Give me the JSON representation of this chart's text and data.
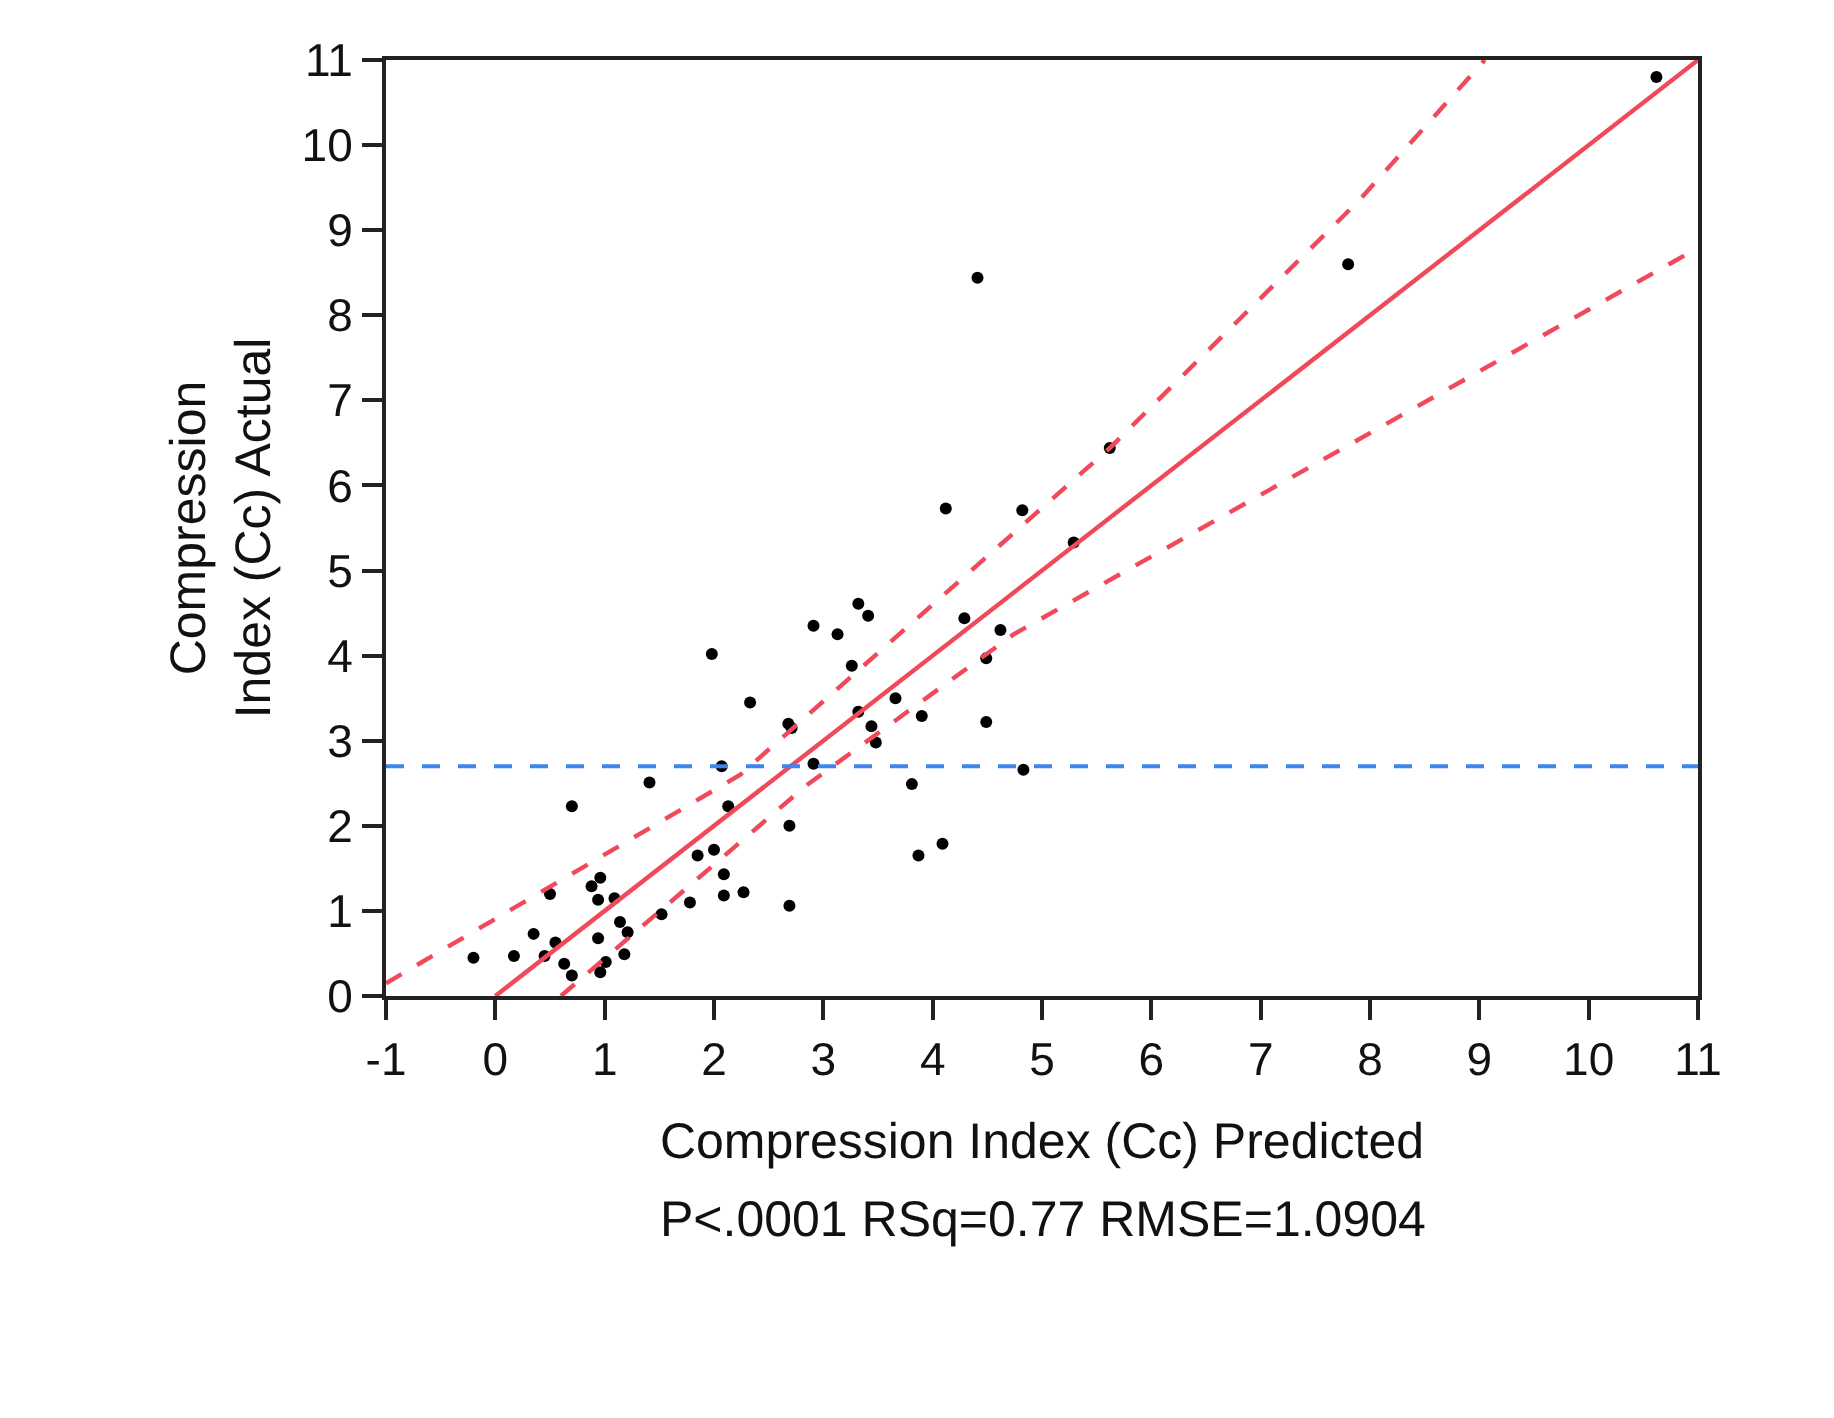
{
  "chart_data": {
    "type": "scatter",
    "xlabel": "Compression Index (Cc) Predicted",
    "ylabel": "Compression\nIndex (Cc) Actual",
    "annotations": [
      "P<.0001 RSq=0.77 RMSE=1.0904"
    ],
    "xlim": [
      -1,
      11
    ],
    "ylim": [
      0,
      11
    ],
    "xticks": [
      -1,
      0,
      1,
      2,
      3,
      4,
      5,
      6,
      7,
      8,
      9,
      10,
      11
    ],
    "yticks": [
      0,
      1,
      2,
      3,
      4,
      5,
      6,
      7,
      8,
      9,
      10,
      11
    ],
    "series": [
      {
        "color": "#000000",
        "marker": "circle",
        "x": [
          -0.2,
          0.17,
          0.35,
          0.45,
          0.5,
          0.55,
          0.63,
          0.7,
          0.7,
          0.88,
          0.96,
          0.94,
          0.94,
          1.09,
          1.14,
          1.21,
          1.01,
          0.96,
          1.18,
          1.41,
          1.52,
          1.78,
          1.85,
          2.0,
          2.09,
          2.09,
          2.13,
          2.27,
          2.07,
          2.69,
          2.69,
          2.91,
          1.98,
          2.33,
          2.68,
          2.71,
          3.32,
          3.44,
          3.48,
          3.66,
          3.9,
          3.81,
          3.87,
          4.09,
          4.83,
          4.49,
          4.49,
          4.62,
          4.29,
          3.26,
          3.13,
          2.91,
          3.32,
          3.41,
          4.12,
          4.82,
          5.29,
          5.62,
          4.41,
          7.8,
          10.62
        ],
        "values": [
          0.45,
          0.47,
          0.73,
          0.47,
          1.2,
          0.63,
          0.38,
          0.24,
          2.23,
          1.29,
          1.39,
          1.13,
          0.68,
          1.15,
          0.87,
          0.75,
          0.4,
          0.28,
          0.49,
          2.51,
          0.96,
          1.1,
          1.65,
          1.72,
          1.43,
          1.18,
          2.23,
          1.22,
          2.7,
          2.0,
          1.06,
          2.73,
          4.02,
          3.45,
          3.2,
          3.15,
          3.34,
          3.17,
          2.98,
          3.5,
          3.29,
          2.49,
          1.65,
          1.79,
          2.66,
          3.22,
          3.97,
          4.3,
          4.44,
          3.88,
          4.25,
          4.35,
          4.61,
          4.47,
          5.73,
          5.71,
          5.33,
          6.44,
          8.44,
          8.6,
          10.8
        ]
      },
      {
        "type": "line",
        "color": "#f04a5a",
        "line_style": "solid",
        "x": [
          0,
          11
        ],
        "values": [
          0,
          11
        ]
      },
      {
        "type": "line",
        "color": "#f04a5a",
        "line_style": "dashed",
        "x": [
          -1,
          2.24,
          5.62,
          7.9,
          9.05
        ],
        "values": [
          0.15,
          2.6,
          6.44,
          9.35,
          11
        ]
      },
      {
        "type": "line",
        "color": "#f04a5a",
        "line_style": "dashed",
        "x": [
          0.6,
          2.84,
          4.74,
          10.9
        ],
        "values": [
          0,
          2.47,
          4.25,
          8.72
        ]
      }
    ],
    "ref_lines": [
      {
        "axis": "y",
        "value": 2.7,
        "color": "#3d85f0",
        "line_style": "dashed"
      }
    ]
  }
}
